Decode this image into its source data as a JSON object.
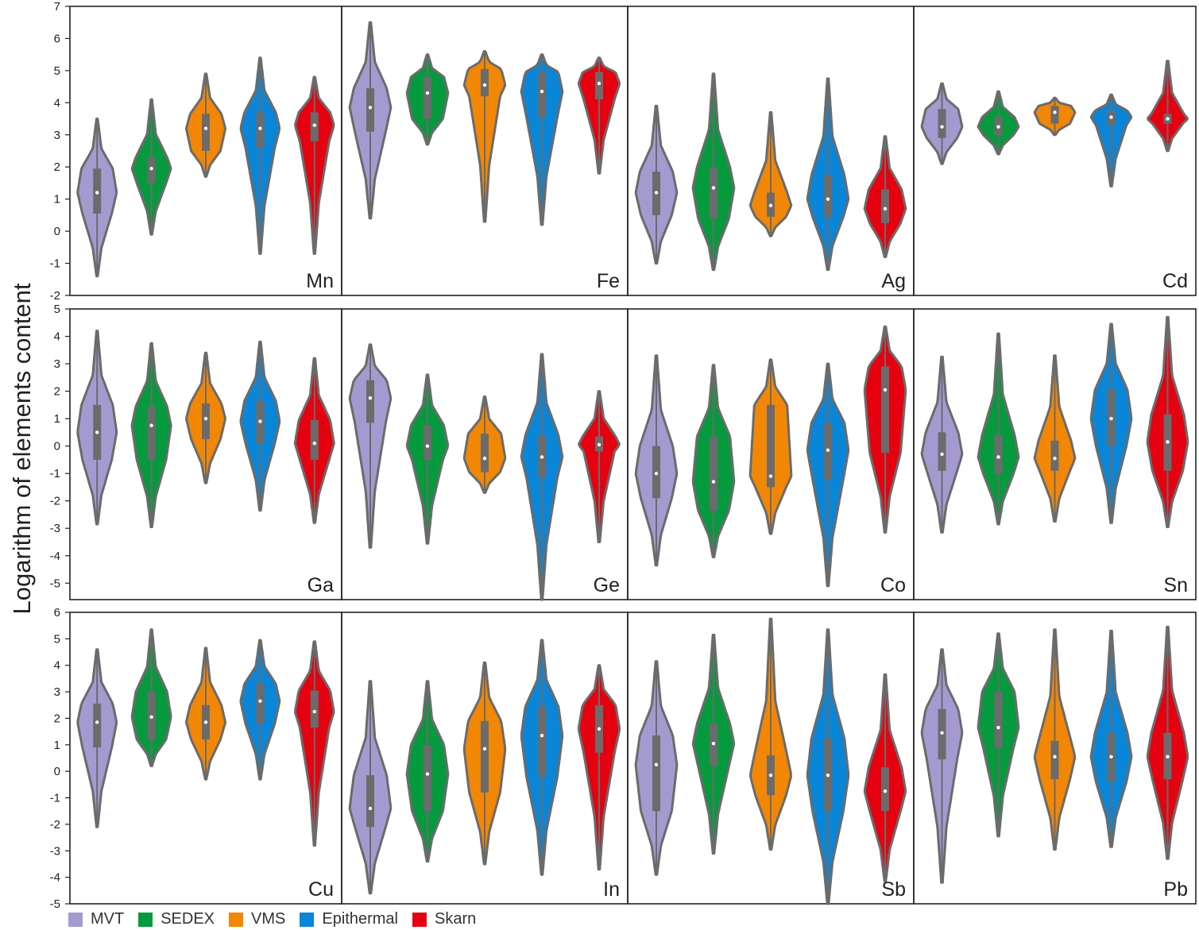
{
  "chart_data": {
    "type": "violin",
    "ylabel": "Logarithm of elements content",
    "legend": {
      "placement": "bottom-left",
      "entries": [
        {
          "name": "MVT",
          "color": "#a59ad0"
        },
        {
          "name": "SEDEX",
          "color": "#069a3e"
        },
        {
          "name": "VMS",
          "color": "#f28705"
        },
        {
          "name": "Epithermal",
          "color": "#0a86d8"
        },
        {
          "name": "Skarn",
          "color": "#e5010f"
        }
      ]
    },
    "rows": [
      {
        "ylim": [
          -2,
          7
        ],
        "yticks": [
          "-2",
          "-1",
          "0",
          "1",
          "2",
          "3",
          "4",
          "5",
          "6",
          "7"
        ]
      },
      {
        "ylim": [
          -5.6,
          5
        ],
        "yticks": [
          "-5",
          "-4",
          "-3",
          "-2",
          "-1",
          "0",
          "1",
          "2",
          "3",
          "4",
          "5"
        ]
      },
      {
        "ylim": [
          -5,
          6
        ],
        "yticks": [
          "-5",
          "-4",
          "-3",
          "-2",
          "-1",
          "0",
          "1",
          "2",
          "3",
          "4",
          "5",
          "6"
        ]
      }
    ],
    "panels": [
      {
        "element": "Mn",
        "row": 0,
        "series": [
          {
            "name": "MVT",
            "min": -1.4,
            "q1": 0.55,
            "median": 1.2,
            "q3": 1.95,
            "max": 3.5
          },
          {
            "name": "SEDEX",
            "min": -0.1,
            "q1": 1.5,
            "median": 1.95,
            "q3": 2.3,
            "max": 4.1
          },
          {
            "name": "VMS",
            "min": 1.7,
            "q1": 2.5,
            "median": 3.2,
            "q3": 3.65,
            "max": 4.9
          },
          {
            "name": "Epithermal",
            "min": -0.7,
            "q1": 2.6,
            "median": 3.2,
            "q3": 3.7,
            "max": 5.4
          },
          {
            "name": "Skarn",
            "min": -0.7,
            "q1": 2.8,
            "median": 3.3,
            "q3": 3.7,
            "max": 4.8
          }
        ]
      },
      {
        "element": "Fe",
        "row": 0,
        "series": [
          {
            "name": "MVT",
            "min": 0.4,
            "q1": 3.1,
            "median": 3.85,
            "q3": 4.45,
            "max": 6.5
          },
          {
            "name": "SEDEX",
            "min": 2.7,
            "q1": 3.5,
            "median": 4.3,
            "q3": 4.8,
            "max": 5.5
          },
          {
            "name": "VMS",
            "min": 0.3,
            "q1": 4.2,
            "median": 4.55,
            "q3": 5.05,
            "max": 5.6
          },
          {
            "name": "Epithermal",
            "min": 0.2,
            "q1": 3.55,
            "median": 4.35,
            "q3": 4.95,
            "max": 5.5
          },
          {
            "name": "Skarn",
            "min": 1.8,
            "q1": 4.1,
            "median": 4.6,
            "q3": 4.95,
            "max": 5.4
          }
        ]
      },
      {
        "element": "Ag",
        "row": 0,
        "series": [
          {
            "name": "MVT",
            "min": -1.0,
            "q1": 0.5,
            "median": 1.2,
            "q3": 1.85,
            "max": 3.9
          },
          {
            "name": "SEDEX",
            "min": -1.2,
            "q1": 0.4,
            "median": 1.35,
            "q3": 2.0,
            "max": 4.9
          },
          {
            "name": "VMS",
            "min": -0.15,
            "q1": 0.45,
            "median": 0.8,
            "q3": 1.2,
            "max": 3.7
          },
          {
            "name": "Epithermal",
            "min": -1.2,
            "q1": 0.45,
            "median": 1.0,
            "q3": 1.75,
            "max": 4.75
          },
          {
            "name": "Skarn",
            "min": -0.8,
            "q1": 0.25,
            "median": 0.7,
            "q3": 1.3,
            "max": 2.95
          }
        ]
      },
      {
        "element": "Cd",
        "row": 0,
        "series": [
          {
            "name": "MVT",
            "min": 2.1,
            "q1": 2.9,
            "median": 3.25,
            "q3": 3.8,
            "max": 4.6
          },
          {
            "name": "SEDEX",
            "min": 2.4,
            "q1": 3.0,
            "median": 3.25,
            "q3": 3.55,
            "max": 4.35
          },
          {
            "name": "VMS",
            "min": 3.0,
            "q1": 3.35,
            "median": 3.7,
            "q3": 3.9,
            "max": 4.15
          },
          {
            "name": "Epithermal",
            "min": 1.4,
            "q1": 3.3,
            "median": 3.55,
            "q3": 3.75,
            "max": 4.25
          },
          {
            "name": "Skarn",
            "min": 2.5,
            "q1": 3.35,
            "median": 3.5,
            "q3": 3.65,
            "max": 5.3
          }
        ]
      },
      {
        "element": "Ga",
        "row": 1,
        "series": [
          {
            "name": "MVT",
            "min": -2.85,
            "q1": -0.5,
            "median": 0.5,
            "q3": 1.5,
            "max": 4.2
          },
          {
            "name": "SEDEX",
            "min": -2.95,
            "q1": -0.5,
            "median": 0.75,
            "q3": 1.45,
            "max": 3.75
          },
          {
            "name": "VMS",
            "min": -1.35,
            "q1": 0.25,
            "median": 1.0,
            "q3": 1.55,
            "max": 3.4
          },
          {
            "name": "Epithermal",
            "min": -2.35,
            "q1": 0.1,
            "median": 0.9,
            "q3": 1.65,
            "max": 3.8
          },
          {
            "name": "Skarn",
            "min": -2.8,
            "q1": -0.5,
            "median": 0.1,
            "q3": 0.95,
            "max": 3.2
          }
        ]
      },
      {
        "element": "Ge",
        "row": 1,
        "series": [
          {
            "name": "MVT",
            "min": -3.7,
            "q1": 0.85,
            "median": 1.75,
            "q3": 2.4,
            "max": 3.7
          },
          {
            "name": "SEDEX",
            "min": -3.55,
            "q1": -0.5,
            "median": 0.0,
            "q3": 0.75,
            "max": 2.6
          },
          {
            "name": "VMS",
            "min": -1.7,
            "q1": -0.95,
            "median": -0.45,
            "q3": 0.45,
            "max": 1.8
          },
          {
            "name": "Epithermal",
            "min": -5.6,
            "q1": -1.15,
            "median": -0.4,
            "q3": 0.4,
            "max": 3.35
          },
          {
            "name": "Skarn",
            "min": -3.5,
            "q1": -0.2,
            "median": 0.05,
            "q3": 0.35,
            "max": 2.0
          }
        ]
      },
      {
        "element": "Co",
        "row": 1,
        "series": [
          {
            "name": "MVT",
            "min": -4.35,
            "q1": -1.9,
            "median": -1.0,
            "q3": 0.0,
            "max": 3.3
          },
          {
            "name": "SEDEX",
            "min": -4.05,
            "q1": -2.35,
            "median": -1.3,
            "q3": 0.35,
            "max": 2.95
          },
          {
            "name": "VMS",
            "min": -3.2,
            "q1": -1.5,
            "median": -1.1,
            "q3": 1.5,
            "max": 3.15
          },
          {
            "name": "Epithermal",
            "min": -5.1,
            "q1": -1.2,
            "median": -0.15,
            "q3": 0.85,
            "max": 3.0
          },
          {
            "name": "Skarn",
            "min": -3.15,
            "q1": -0.25,
            "median": 2.05,
            "q3": 2.9,
            "max": 4.35
          }
        ]
      },
      {
        "element": "Sn",
        "row": 1,
        "series": [
          {
            "name": "MVT",
            "min": -3.15,
            "q1": -0.9,
            "median": -0.3,
            "q3": 0.5,
            "max": 3.25
          },
          {
            "name": "SEDEX",
            "min": -2.85,
            "q1": -1.0,
            "median": -0.4,
            "q3": 0.4,
            "max": 4.1
          },
          {
            "name": "VMS",
            "min": -2.75,
            "q1": -0.9,
            "median": -0.45,
            "q3": 0.2,
            "max": 3.3
          },
          {
            "name": "Epithermal",
            "min": -2.8,
            "q1": 0.0,
            "median": 1.0,
            "q3": 2.05,
            "max": 4.45
          },
          {
            "name": "Skarn",
            "min": -2.95,
            "q1": -0.9,
            "median": 0.15,
            "q3": 1.15,
            "max": 4.7
          }
        ]
      },
      {
        "element": "Cu",
        "row": 2,
        "series": [
          {
            "name": "MVT",
            "min": -2.1,
            "q1": 0.9,
            "median": 1.85,
            "q3": 2.55,
            "max": 4.6
          },
          {
            "name": "SEDEX",
            "min": 0.2,
            "q1": 1.2,
            "median": 2.05,
            "q3": 3.0,
            "max": 5.35
          },
          {
            "name": "VMS",
            "min": -0.3,
            "q1": 1.2,
            "median": 1.85,
            "q3": 2.5,
            "max": 4.65
          },
          {
            "name": "Epithermal",
            "min": -0.3,
            "q1": 1.8,
            "median": 2.65,
            "q3": 3.3,
            "max": 4.95
          },
          {
            "name": "Skarn",
            "min": -2.8,
            "q1": 1.65,
            "median": 2.25,
            "q3": 3.05,
            "max": 4.9
          }
        ]
      },
      {
        "element": "In",
        "row": 2,
        "series": [
          {
            "name": "MVT",
            "min": -4.6,
            "q1": -2.1,
            "median": -1.4,
            "q3": -0.15,
            "max": 3.4
          },
          {
            "name": "SEDEX",
            "min": -3.4,
            "q1": -1.5,
            "median": -0.1,
            "q3": 1.0,
            "max": 3.4
          },
          {
            "name": "VMS",
            "min": -3.5,
            "q1": -0.8,
            "median": 0.85,
            "q3": 1.9,
            "max": 4.1
          },
          {
            "name": "Epithermal",
            "min": -3.9,
            "q1": -0.2,
            "median": 1.35,
            "q3": 2.45,
            "max": 4.95
          },
          {
            "name": "Skarn",
            "min": -3.7,
            "q1": 0.7,
            "median": 1.6,
            "q3": 2.5,
            "max": 4.0
          }
        ]
      },
      {
        "element": "Sb",
        "row": 2,
        "series": [
          {
            "name": "MVT",
            "min": -3.9,
            "q1": -1.5,
            "median": 0.25,
            "q3": 1.35,
            "max": 4.15
          },
          {
            "name": "SEDEX",
            "min": -3.1,
            "q1": 0.2,
            "median": 1.05,
            "q3": 1.8,
            "max": 5.15
          },
          {
            "name": "VMS",
            "min": -2.95,
            "q1": -0.9,
            "median": -0.15,
            "q3": 0.6,
            "max": 5.75
          },
          {
            "name": "Epithermal",
            "min": -5.0,
            "q1": -1.5,
            "median": -0.15,
            "q3": 1.25,
            "max": 5.35
          },
          {
            "name": "Skarn",
            "min": -4.15,
            "q1": -1.5,
            "median": -0.75,
            "q3": 0.15,
            "max": 3.65
          }
        ]
      },
      {
        "element": "Pb",
        "row": 2,
        "series": [
          {
            "name": "MVT",
            "min": -4.2,
            "q1": 0.45,
            "median": 1.45,
            "q3": 2.35,
            "max": 4.6
          },
          {
            "name": "SEDEX",
            "min": -2.45,
            "q1": 0.9,
            "median": 1.65,
            "q3": 3.0,
            "max": 5.2
          },
          {
            "name": "VMS",
            "min": -2.95,
            "q1": -0.3,
            "median": 0.55,
            "q3": 1.15,
            "max": 5.35
          },
          {
            "name": "Epithermal",
            "min": -2.85,
            "q1": -0.4,
            "median": 0.55,
            "q3": 1.45,
            "max": 5.3
          },
          {
            "name": "Skarn",
            "min": -3.3,
            "q1": -0.3,
            "median": 0.55,
            "q3": 1.45,
            "max": 5.45
          }
        ]
      }
    ]
  }
}
